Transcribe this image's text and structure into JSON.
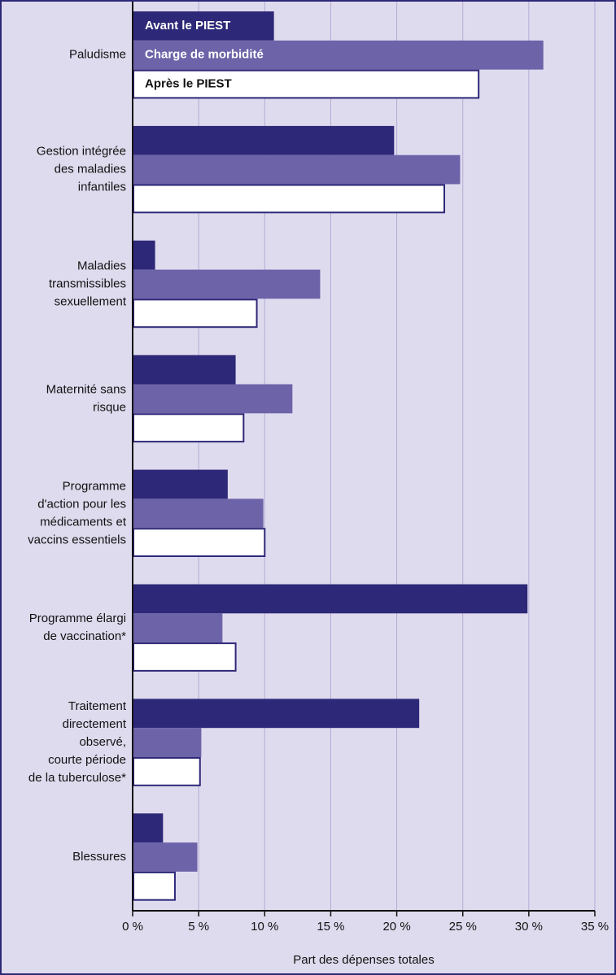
{
  "chart_data": {
    "type": "hbar",
    "x_label": "Part des dépenses totales",
    "categories": [
      [
        "Paludisme"
      ],
      [
        "Gestion intégrée",
        "des maladies",
        "infantiles"
      ],
      [
        "Maladies",
        "transmissibles",
        "sexuellement"
      ],
      [
        "Maternité sans",
        "risque"
      ],
      [
        "Programme",
        "d'action pour les",
        "médicaments et",
        "vaccins essentiels"
      ],
      [
        "Programme élargi",
        "de vaccination*"
      ],
      [
        "Traitement",
        "directement",
        "observé,",
        "courte période",
        "de la tuberculose*"
      ],
      [
        "Blessures"
      ]
    ],
    "series": [
      {
        "name": "Avant le PIEST",
        "color": "#2e2878",
        "values": [
          10.7,
          19.8,
          1.7,
          7.8,
          7.2,
          29.9,
          21.7,
          2.3
        ]
      },
      {
        "name": "Charge de morbidité",
        "color": "#6d63a9",
        "values": [
          31.1,
          24.8,
          14.2,
          12.1,
          9.9,
          6.8,
          5.2,
          4.9
        ]
      },
      {
        "name": "Après le PIEST",
        "color": "#ffffff",
        "values": [
          26.2,
          23.6,
          9.4,
          8.4,
          10.0,
          7.8,
          5.1,
          3.2
        ]
      }
    ],
    "xlim": [
      0,
      35
    ],
    "xticks": [
      {
        "value": 0,
        "label": "0 %"
      },
      {
        "value": 5,
        "label": "5 %"
      },
      {
        "value": 10,
        "label": "10 %"
      },
      {
        "value": 15,
        "label": "15 %"
      },
      {
        "value": 20,
        "label": "20 %"
      },
      {
        "value": 25,
        "label": "25 %"
      },
      {
        "value": 30,
        "label": "30 %"
      },
      {
        "value": 35,
        "label": "35 %"
      }
    ],
    "grid": true,
    "legend": "inside-first-group"
  }
}
